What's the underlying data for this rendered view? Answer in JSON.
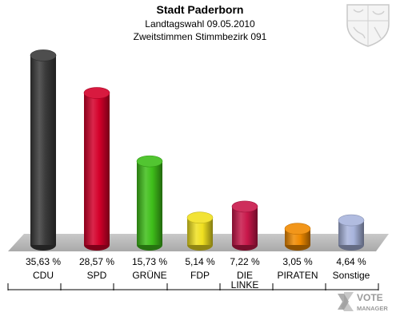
{
  "header": {
    "title": "Stadt Paderborn",
    "subtitle1": "Landtagswahl 09.05.2010",
    "subtitle2": "Zweitstimmen Stimmbezirk 091"
  },
  "logo": {
    "text": "VOTE MANAGER"
  },
  "chart_data": {
    "type": "bar",
    "categories": [
      "CDU",
      "SPD",
      "GRÜNE",
      "FDP",
      "DIE LINKE",
      "PIRATEN",
      "Sonstige"
    ],
    "category_lines": [
      [
        "CDU"
      ],
      [
        "SPD"
      ],
      [
        "GRÜNE"
      ],
      [
        "FDP"
      ],
      [
        "DIE",
        "LINKE"
      ],
      [
        "PIRATEN"
      ],
      [
        "Sonstige"
      ]
    ],
    "values": [
      35.63,
      28.57,
      15.73,
      5.14,
      7.22,
      3.05,
      4.64
    ],
    "labels": [
      "35,63 %",
      "28,57 %",
      "15,73 %",
      "5,14 %",
      "7,22 %",
      "3,05 %",
      "4,64 %"
    ],
    "colors": [
      "#3a3a3a",
      "#d4002a",
      "#3fbf1a",
      "#f0e020",
      "#c8174a",
      "#f08a00",
      "#a8b4dc"
    ],
    "title": "Stadt Paderborn",
    "ylim": [
      0,
      36
    ],
    "grid": false,
    "legend": "none"
  }
}
